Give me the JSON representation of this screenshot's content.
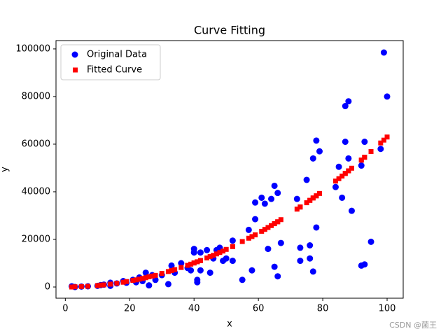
{
  "chart_data": {
    "type": "scatter",
    "title": "Curve Fitting",
    "x_label": "x",
    "y_label": "y",
    "x": [
      2,
      3,
      5,
      7,
      10,
      11,
      12,
      14,
      14,
      16,
      18,
      19,
      21,
      22,
      23,
      24,
      25,
      26,
      27,
      28,
      30,
      32,
      33,
      34,
      36,
      38,
      39,
      40,
      40,
      41,
      41,
      42,
      42,
      44,
      45,
      46,
      47,
      48,
      49,
      50,
      52,
      52,
      55,
      57,
      58,
      59,
      59,
      61,
      62,
      63,
      64,
      65,
      65,
      66,
      66,
      67,
      72,
      73,
      73,
      75,
      76,
      76,
      77,
      77,
      78,
      78,
      79,
      84,
      85,
      86,
      87,
      87,
      88,
      88,
      89,
      92,
      92,
      93,
      93,
      95,
      98,
      99,
      100
    ],
    "series": [
      {
        "name": "Original Data",
        "color": "#0000ff",
        "marker": "circle",
        "values": [
          300,
          0,
          200,
          300,
          500,
          800,
          1000,
          500,
          1800,
          1500,
          2500,
          1800,
          3000,
          2000,
          4000,
          2500,
          6000,
          700,
          5000,
          3000,
          5000,
          1200,
          9000,
          6000,
          10000,
          8000,
          7000,
          16000,
          14500,
          3000,
          2000,
          14500,
          7000,
          15500,
          6000,
          12000,
          15500,
          16500,
          11000,
          12000,
          19500,
          11000,
          3000,
          24000,
          7000,
          35500,
          28500,
          37500,
          35000,
          16000,
          37000,
          42500,
          8500,
          39500,
          4500,
          18500,
          37000,
          16500,
          11000,
          45000,
          17500,
          12000,
          6500,
          54000,
          25000,
          61500,
          57000,
          42000,
          50500,
          37500,
          76000,
          61000,
          78000,
          54000,
          32000,
          51000,
          9000,
          9500,
          61000,
          19000,
          58000,
          98500,
          80000
        ]
      },
      {
        "name": "Fitted Curve",
        "color": "#ff0000",
        "marker": "square",
        "values": [
          0,
          100,
          200,
          300,
          600,
          800,
          900,
          1200,
          1200,
          1600,
          2000,
          2300,
          2800,
          3000,
          3300,
          3600,
          3900,
          4300,
          4600,
          4900,
          5700,
          6500,
          6900,
          7300,
          8200,
          9100,
          9600,
          10100,
          10100,
          10600,
          10600,
          11100,
          11100,
          12200,
          12800,
          13300,
          13900,
          14500,
          15100,
          15800,
          17000,
          17000,
          19100,
          20500,
          21200,
          21900,
          21900,
          23400,
          24200,
          25000,
          25800,
          26600,
          26600,
          27400,
          27400,
          28300,
          32700,
          33600,
          33600,
          35400,
          36400,
          36400,
          37400,
          37400,
          38300,
          38300,
          39300,
          44500,
          45500,
          46600,
          47700,
          47700,
          48800,
          48800,
          49900,
          53300,
          53300,
          54500,
          54500,
          56900,
          60500,
          61700,
          63000
        ]
      }
    ],
    "xlim": [
      -2.9,
      105
    ],
    "ylim": [
      -4700,
      103500
    ],
    "xticks": [
      0,
      20,
      40,
      60,
      80,
      100
    ],
    "yticks": [
      0,
      20000,
      40000,
      60000,
      80000,
      100000
    ],
    "legend": "upper left",
    "watermark": "CSDN @菌王"
  }
}
